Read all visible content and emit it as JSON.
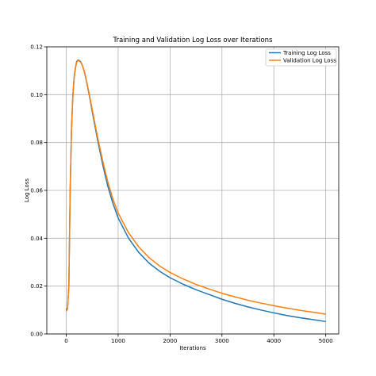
{
  "chart_data": {
    "type": "line",
    "title": "Training and Validation Log Loss over Iterations",
    "xlabel": "Iterations",
    "ylabel": "Log Loss",
    "xlim": [
      -375,
      5250
    ],
    "ylim": [
      0.0,
      0.12
    ],
    "xticks": [
      0,
      1000,
      2000,
      3000,
      4000,
      5000
    ],
    "yticks": [
      0.0,
      0.02,
      0.04,
      0.06,
      0.08,
      0.1,
      0.12
    ],
    "xtick_labels": [
      "0",
      "1000",
      "2000",
      "3000",
      "4000",
      "5000"
    ],
    "ytick_labels": [
      "0.00",
      "0.02",
      "0.04",
      "0.06",
      "0.08",
      "0.10",
      "0.12"
    ],
    "grid": true,
    "legend_position": "top-right",
    "series": [
      {
        "name": "Training Log Loss",
        "color": "#1f77b4",
        "x": [
          0,
          25,
          50,
          75,
          100,
          125,
          150,
          175,
          200,
          225,
          250,
          275,
          300,
          325,
          350,
          400,
          450,
          500,
          600,
          700,
          800,
          900,
          1000,
          1200,
          1400,
          1600,
          1800,
          2000,
          2250,
          2500,
          2750,
          3000,
          3250,
          3500,
          3750,
          4000,
          4250,
          4500,
          4750,
          5000
        ],
        "y": [
          0.01,
          0.011,
          0.02,
          0.06,
          0.085,
          0.099,
          0.107,
          0.111,
          0.1138,
          0.1145,
          0.1143,
          0.1138,
          0.1128,
          0.1112,
          0.1095,
          0.1045,
          0.099,
          0.093,
          0.0815,
          0.071,
          0.0618,
          0.0545,
          0.0485,
          0.04,
          0.034,
          0.0295,
          0.0262,
          0.0235,
          0.0208,
          0.0185,
          0.0165,
          0.0145,
          0.0128,
          0.0113,
          0.01,
          0.0088,
          0.0077,
          0.0068,
          0.006,
          0.0052
        ]
      },
      {
        "name": "Validation Log Loss",
        "color": "#ff7f0e",
        "x": [
          0,
          25,
          50,
          75,
          100,
          125,
          150,
          175,
          200,
          225,
          250,
          275,
          300,
          325,
          350,
          400,
          450,
          500,
          600,
          700,
          800,
          900,
          1000,
          1200,
          1400,
          1600,
          1800,
          2000,
          2250,
          2500,
          2750,
          3000,
          3250,
          3500,
          3750,
          4000,
          4250,
          4500,
          4750,
          5000
        ],
        "y": [
          0.0095,
          0.0105,
          0.0195,
          0.059,
          0.0845,
          0.0985,
          0.1065,
          0.1108,
          0.1135,
          0.1143,
          0.1141,
          0.1136,
          0.1127,
          0.1112,
          0.1096,
          0.1048,
          0.0995,
          0.0938,
          0.0826,
          0.0725,
          0.0636,
          0.0563,
          0.0505,
          0.0423,
          0.0363,
          0.0318,
          0.0284,
          0.0257,
          0.023,
          0.0207,
          0.0188,
          0.017,
          0.0155,
          0.0141,
          0.0129,
          0.0118,
          0.0108,
          0.0099,
          0.0091,
          0.0083
        ]
      }
    ]
  }
}
